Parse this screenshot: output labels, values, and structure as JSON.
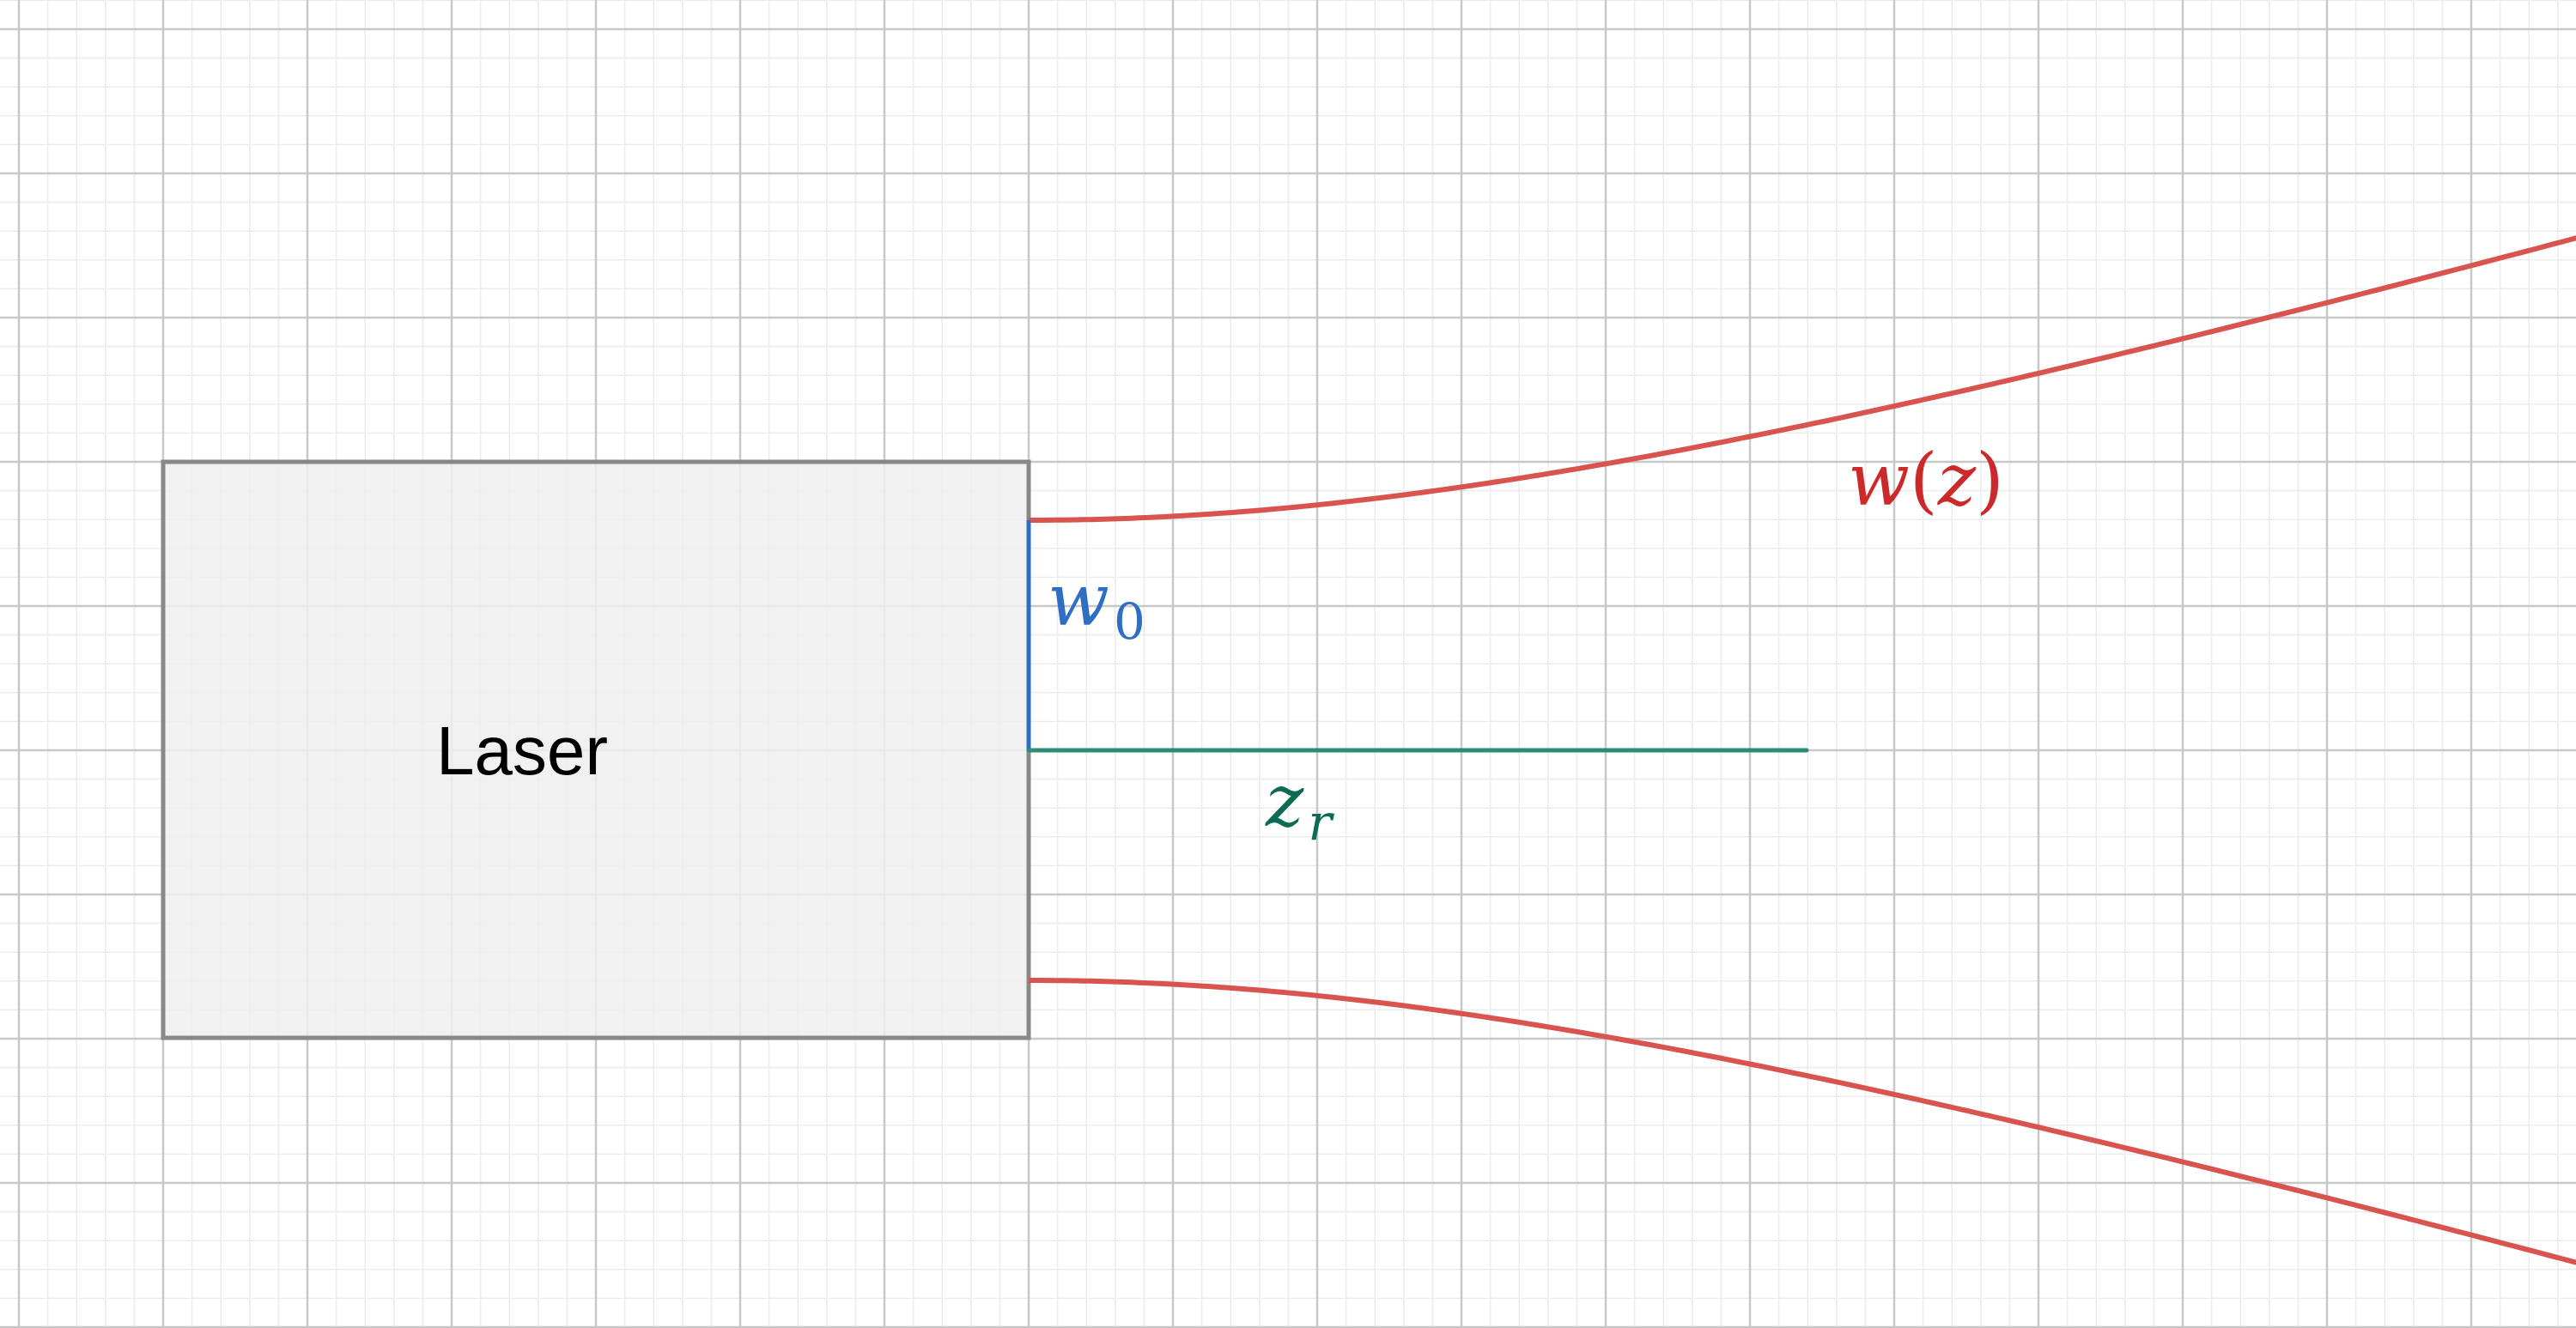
{
  "laser": {
    "label": "Laser"
  },
  "labels": {
    "waist": {
      "base": "w",
      "subscript": "0"
    },
    "rayleigh": {
      "base": "z",
      "subscript": "r"
    },
    "beam_width": {
      "w": "w",
      "open": "(",
      "z": "z",
      "close": ")"
    }
  },
  "colors": {
    "minor_grid": "#ececec",
    "major_grid": "#c8c8c8",
    "laser_fill": "#efefef",
    "laser_border": "#888888",
    "laser_text": "#000000",
    "beam": "#d9534f",
    "beam_label": "#cc2a2a",
    "waist": "#2e6fc4",
    "rayleigh": "#2e8b7a",
    "rayleigh_label": "#0d6b55"
  },
  "icons": {
    "waist_marker": "vertical-line",
    "rayleigh_marker": "horizontal-line"
  }
}
